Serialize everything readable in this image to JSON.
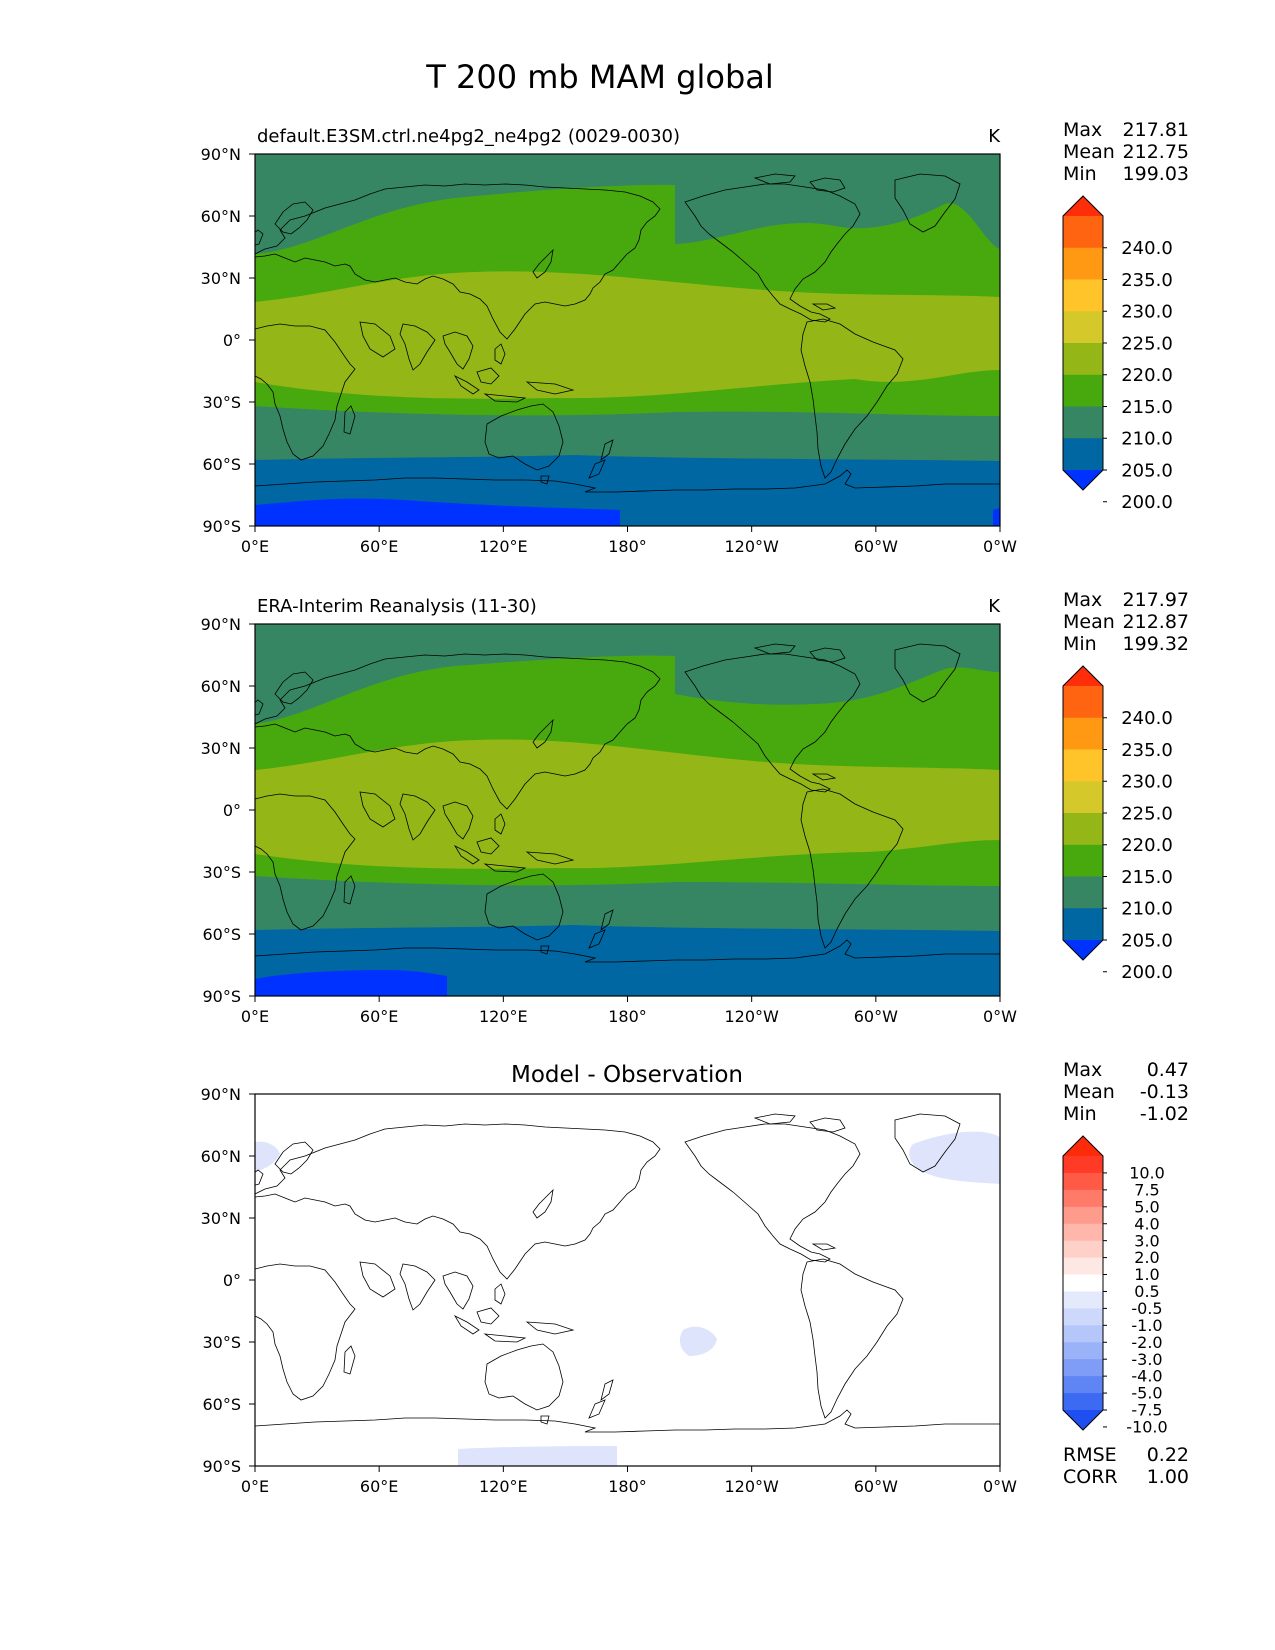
{
  "figure": {
    "title": "T 200 mb MAM global"
  },
  "axes": {
    "lat_ticks": [
      "90°N",
      "60°N",
      "30°N",
      "0°",
      "30°S",
      "60°S",
      "90°S"
    ],
    "lon_ticks": [
      "0°E",
      "60°E",
      "120°E",
      "180°",
      "120°W",
      "60°W",
      "0°W"
    ]
  },
  "panels": [
    {
      "id": "model",
      "title_left": "default.E3SM.ctrl.ne4pg2_ne4pg2 (0029-0030)",
      "title_center": "",
      "units": "K",
      "stats": [
        {
          "label": "Max",
          "value": "217.81"
        },
        {
          "label": "Mean",
          "value": "212.75"
        },
        {
          "label": "Min",
          "value": "199.03"
        }
      ],
      "colorbar": {
        "levels": [
          "240.0",
          "235.0",
          "230.0",
          "225.0",
          "220.0",
          "215.0",
          "210.0",
          "205.0",
          "200.0"
        ],
        "colors": [
          "#ff2e0a",
          "#ff6411",
          "#ff9913",
          "#fec42a",
          "#d5c82a",
          "#94b717",
          "#48a90f",
          "#368664",
          "#0067a2",
          "#0032ff"
        ]
      }
    },
    {
      "id": "obs",
      "title_left": "ERA-Interim Reanalysis (11-30)",
      "title_center": "",
      "units": "K",
      "stats": [
        {
          "label": "Max",
          "value": "217.97"
        },
        {
          "label": "Mean",
          "value": "212.87"
        },
        {
          "label": "Min",
          "value": "199.32"
        }
      ],
      "colorbar": {
        "levels": [
          "240.0",
          "235.0",
          "230.0",
          "225.0",
          "220.0",
          "215.0",
          "210.0",
          "205.0",
          "200.0"
        ],
        "colors": [
          "#ff2e0a",
          "#ff6411",
          "#ff9913",
          "#fec42a",
          "#d5c82a",
          "#94b717",
          "#48a90f",
          "#368664",
          "#0067a2",
          "#0032ff"
        ]
      }
    },
    {
      "id": "diff",
      "title_left": "",
      "title_center": "Model - Observation",
      "units": "",
      "stats": [
        {
          "label": "Max",
          "value": "0.47"
        },
        {
          "label": "Mean",
          "value": "-0.13"
        },
        {
          "label": "Min",
          "value": "-1.02"
        }
      ],
      "colorbar": {
        "levels": [
          "10.0",
          "7.5",
          "5.0",
          "4.0",
          "3.0",
          "2.0",
          "1.0",
          "0.5",
          "-0.5",
          "-1.0",
          "-2.0",
          "-3.0",
          "-4.0",
          "-5.0",
          "-7.5",
          "-10.0"
        ],
        "colors": [
          "#ff2a0a",
          "#ff3b26",
          "#ff5a45",
          "#ff7a68",
          "#ff9b8c",
          "#ffb6ab",
          "#ffd0c8",
          "#fde8e3",
          "#ffffff",
          "#e4eafc",
          "#cdd8fb",
          "#b4c6fa",
          "#9ab2f8",
          "#7f9cf6",
          "#5f84f4",
          "#3d6af2",
          "#1f4ff0"
        ]
      },
      "metrics": [
        {
          "label": "RMSE",
          "value": "0.22"
        },
        {
          "label": "CORR",
          "value": "1.00"
        }
      ]
    }
  ]
}
